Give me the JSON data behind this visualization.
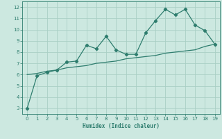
{
  "xlabel": "Humidex (Indice chaleur)",
  "x": [
    0,
    1,
    2,
    3,
    4,
    5,
    6,
    7,
    8,
    9,
    10,
    11,
    12,
    13,
    14,
    15,
    16,
    17,
    18,
    19
  ],
  "y_line": [
    3.0,
    5.9,
    6.2,
    6.4,
    7.1,
    7.2,
    8.6,
    8.3,
    9.4,
    8.2,
    7.8,
    7.8,
    9.7,
    10.8,
    11.8,
    11.3,
    11.8,
    10.4,
    9.9,
    8.7
  ],
  "y_trend": [
    6.0,
    6.1,
    6.3,
    6.4,
    6.6,
    6.7,
    6.8,
    7.0,
    7.1,
    7.2,
    7.4,
    7.5,
    7.6,
    7.7,
    7.9,
    8.0,
    8.1,
    8.2,
    8.5,
    8.7
  ],
  "line_color": "#2e7d6e",
  "trend_color": "#2e7d6e",
  "bg_color": "#cce8e0",
  "grid_color": "#aacfc5",
  "ylim": [
    2.5,
    12.5
  ],
  "xlim": [
    -0.5,
    19.5
  ],
  "yticks": [
    3,
    4,
    5,
    6,
    7,
    8,
    9,
    10,
    11,
    12
  ],
  "xticks": [
    0,
    1,
    2,
    3,
    4,
    5,
    6,
    7,
    8,
    9,
    10,
    11,
    12,
    13,
    14,
    15,
    16,
    17,
    18,
    19
  ]
}
